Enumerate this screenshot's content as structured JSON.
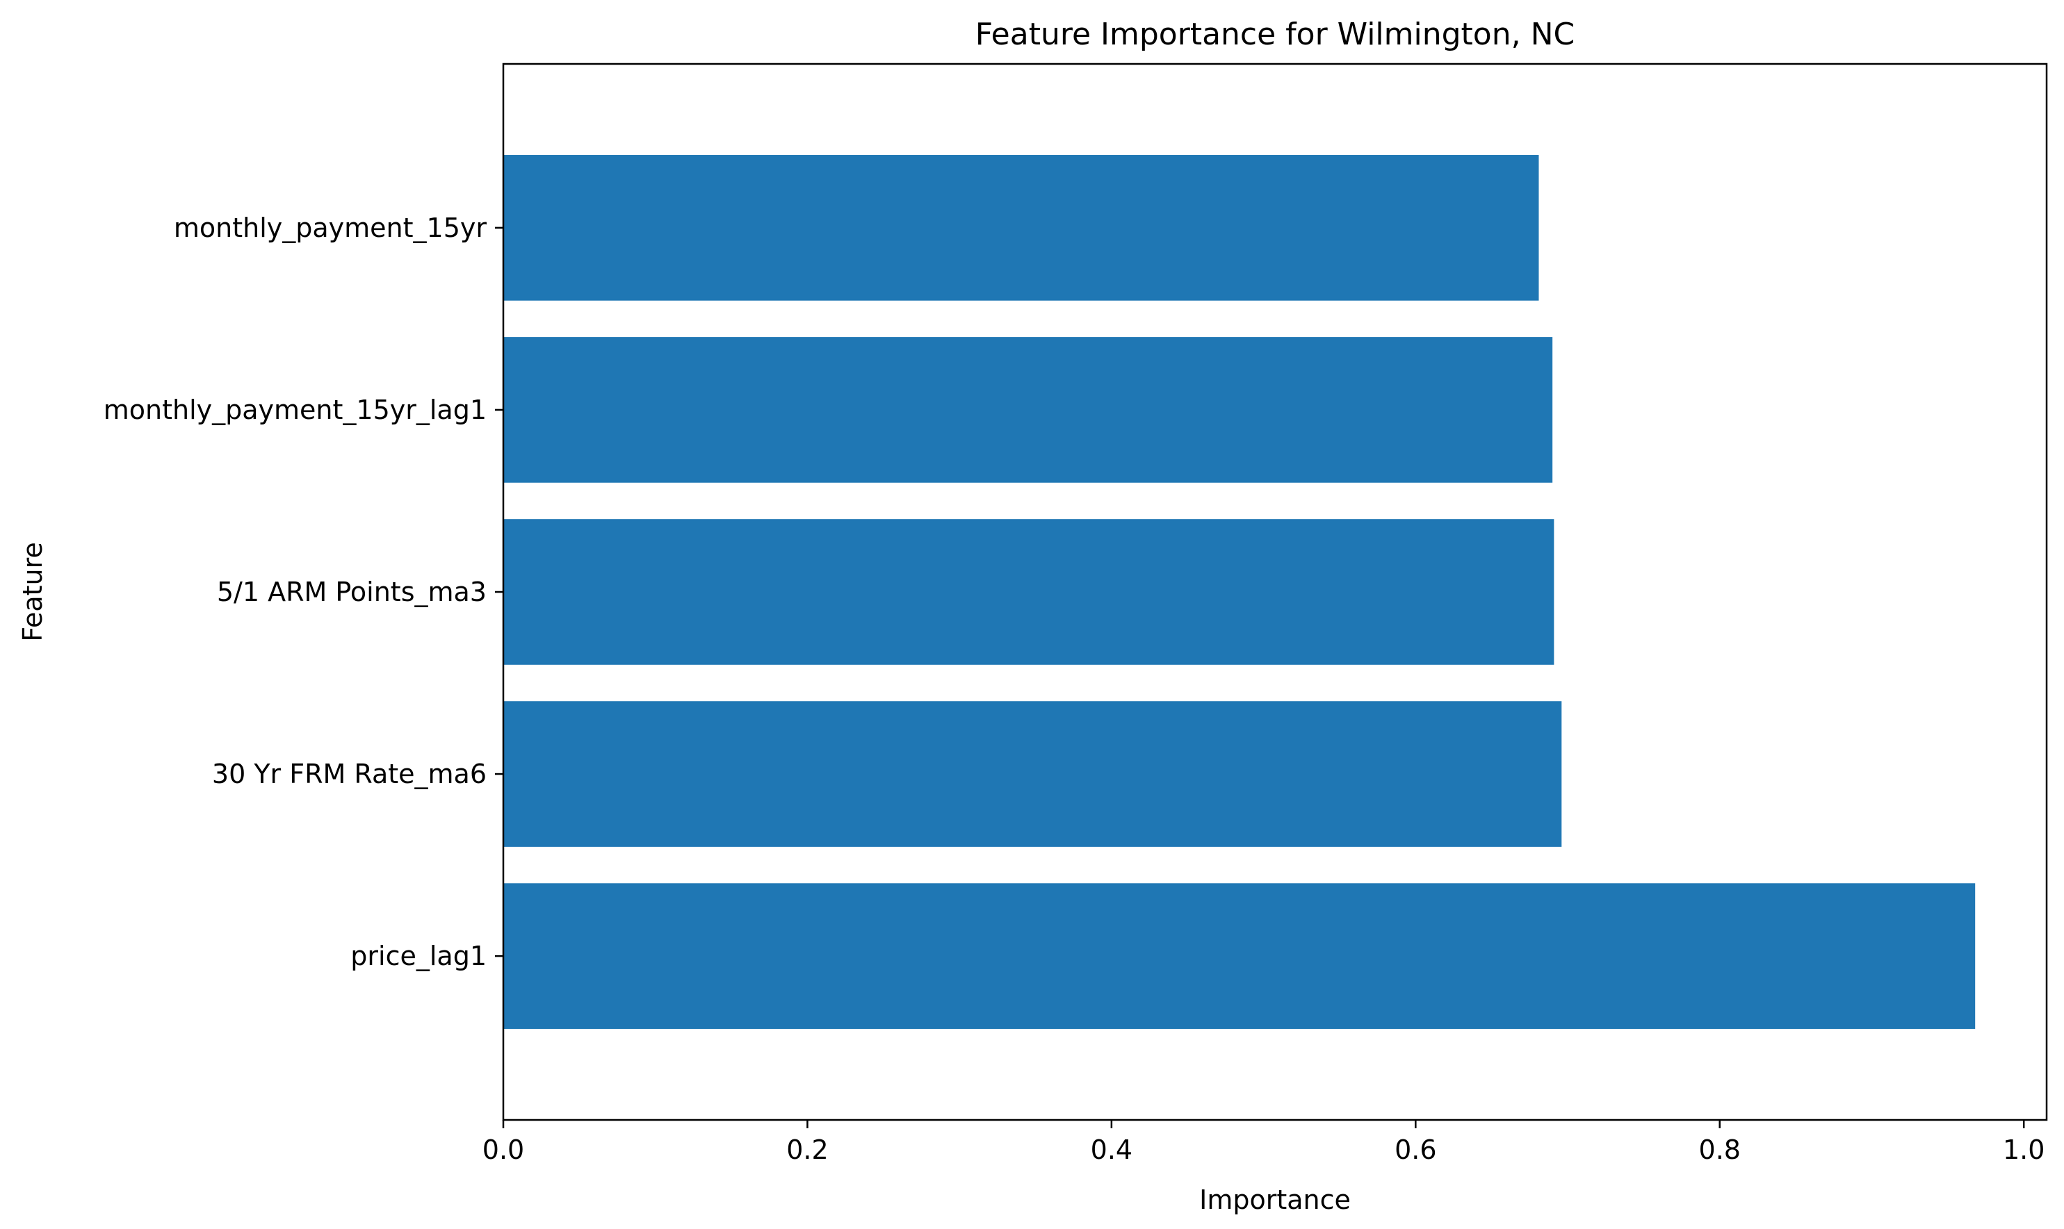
{
  "chart_data": {
    "type": "bar",
    "orientation": "horizontal",
    "title": "Feature Importance for Wilmington, NC",
    "xlabel": "Importance",
    "ylabel": "Feature",
    "categories": [
      "monthly_payment_15yr",
      "monthly_payment_15yr_lag1",
      "5/1 ARM Points_ma3",
      "30 Yr FRM Rate_ma6",
      "price_lag1"
    ],
    "values": [
      0.681,
      0.69,
      0.691,
      0.696,
      0.968
    ],
    "xlim": [
      0,
      1.015
    ],
    "xticks": [
      0.0,
      0.2,
      0.4,
      0.6,
      0.8,
      1.0
    ],
    "xtick_labels": [
      "0.0",
      "0.2",
      "0.4",
      "0.6",
      "0.8",
      "1.0"
    ],
    "bar_color": "#1f77b4",
    "grid": false,
    "legend": "none"
  }
}
